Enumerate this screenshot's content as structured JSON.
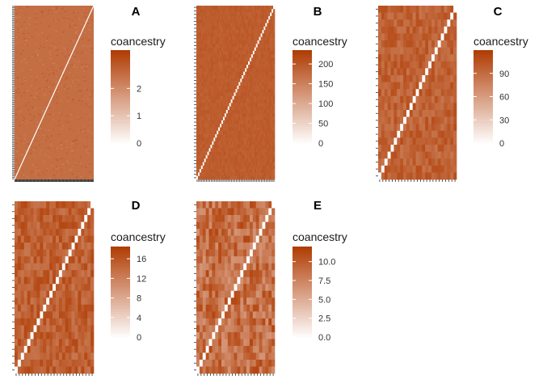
{
  "chart_data": [
    {
      "panel": "A",
      "type": "heatmap",
      "legend": {
        "title": "coancestry",
        "range": [
          0,
          3.4
        ],
        "ticks": [
          0,
          1,
          2
        ],
        "tick_labels": [
          "0",
          "1",
          "2"
        ]
      },
      "diagonal": 0,
      "offdiagonal_range": [
        2.2,
        2.9
      ],
      "n": 300
    },
    {
      "panel": "B",
      "type": "heatmap",
      "legend": {
        "title": "coancestry",
        "range": [
          0,
          235
        ],
        "ticks": [
          0,
          50,
          100,
          150,
          200
        ],
        "tick_labels": [
          "0",
          "50",
          "100",
          "150",
          "200"
        ]
      },
      "diagonal": 0,
      "offdiagonal_range": [
        190,
        205
      ],
      "n": 50
    },
    {
      "panel": "C",
      "type": "heatmap",
      "legend": {
        "title": "coancestry",
        "range": [
          0,
          120
        ],
        "ticks": [
          0,
          30,
          60,
          90
        ],
        "tick_labels": [
          "0",
          "30",
          "60",
          "90"
        ]
      },
      "diagonal": 0,
      "offdiagonal_range": [
        85,
        110
      ],
      "n": 25
    },
    {
      "panel": "D",
      "type": "heatmap",
      "legend": {
        "title": "coancestry",
        "range": [
          0,
          18.5
        ],
        "ticks": [
          0,
          4,
          8,
          12,
          16
        ],
        "tick_labels": [
          "0",
          "4",
          "8",
          "12",
          "16"
        ]
      },
      "diagonal": 0,
      "offdiagonal_range": [
        13,
        17.5
      ],
      "n": 25
    },
    {
      "panel": "E",
      "type": "heatmap",
      "legend": {
        "title": "coancestry",
        "range": [
          0,
          12
        ],
        "ticks": [
          0,
          2.5,
          5,
          7.5,
          10
        ],
        "tick_labels": [
          "0.0",
          "2.5",
          "5.0",
          "7.5",
          "10.0"
        ]
      },
      "diagonal": 0,
      "offdiagonal_range": [
        6.5,
        11.5
      ],
      "n": 25
    }
  ],
  "colors": {
    "low": "#ffffff",
    "high": "#b03d05"
  }
}
